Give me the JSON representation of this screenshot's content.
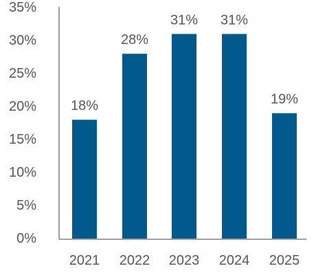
{
  "chart_data": {
    "type": "bar",
    "title": "",
    "xlabel": "",
    "ylabel": "",
    "categories": [
      "2021",
      "2022",
      "2023",
      "2024",
      "2025"
    ],
    "values": [
      18,
      28,
      31,
      31,
      19
    ],
    "data_labels": [
      "18%",
      "28%",
      "31%",
      "31%",
      "19%"
    ],
    "ylim": [
      0,
      35
    ],
    "y_ticks": [
      0,
      5,
      10,
      15,
      20,
      25,
      30,
      35
    ],
    "y_tick_labels": [
      "0%",
      "5%",
      "10%",
      "15%",
      "20%",
      "25%",
      "30%",
      "35%"
    ],
    "grid": false,
    "bar_color": "#005a8b"
  }
}
